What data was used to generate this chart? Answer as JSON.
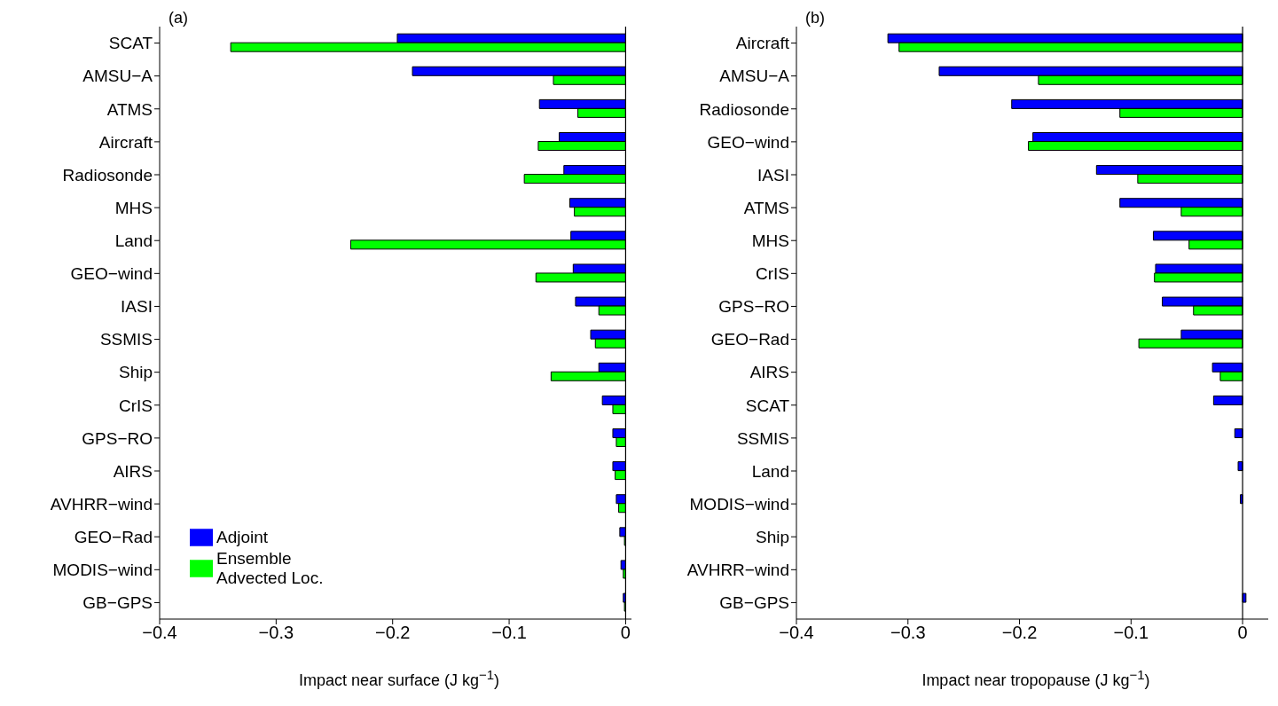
{
  "chart_data": [
    {
      "type": "bar",
      "orientation": "horizontal",
      "title": "(a)",
      "xlabel": "Impact near surface (J kg$^{−1}$)",
      "categories": [
        "SCAT",
        "AMSU−A",
        "ATMS",
        "Aircraft",
        "Radiosonde",
        "MHS",
        "Land",
        "GEO−wind",
        "IASI",
        "SSMIS",
        "Ship",
        "CrIS",
        "GPS−RO",
        "AIRS",
        "AVHRR−wind",
        "GEO−Rad",
        "MODIS−wind",
        "GB−GPS"
      ],
      "series": [
        {
          "name": "Adjoint",
          "color": "#0000ff",
          "values": [
            -0.196,
            -0.183,
            -0.074,
            -0.057,
            -0.053,
            -0.048,
            -0.047,
            -0.045,
            -0.043,
            -0.03,
            -0.023,
            -0.02,
            -0.011,
            -0.011,
            -0.008,
            -0.005,
            -0.004,
            -0.002
          ]
        },
        {
          "name": "Ensemble Advected Loc.",
          "color": "#00ff00",
          "values": [
            -0.339,
            -0.062,
            -0.041,
            -0.075,
            -0.087,
            -0.044,
            -0.236,
            -0.077,
            -0.023,
            -0.026,
            -0.064,
            -0.011,
            -0.008,
            -0.009,
            -0.006,
            -0.001,
            -0.002,
            -0.001
          ]
        }
      ],
      "xlim": [
        -0.4,
        0.005
      ],
      "xticks": [
        -0.4,
        -0.3,
        -0.2,
        -0.1,
        0
      ],
      "ref_lines": [
        {
          "axis": "x",
          "value": 0
        }
      ],
      "legend": "bottom left"
    },
    {
      "type": "bar",
      "orientation": "horizontal",
      "title": "(b)",
      "xlabel": "Impact near tropopause (J kg$^{−1}$)",
      "categories": [
        "Aircraft",
        "AMSU−A",
        "Radiosonde",
        "GEO−wind",
        "IASI",
        "ATMS",
        "MHS",
        "CrIS",
        "GPS−RO",
        "GEO−Rad",
        "AIRS",
        "SCAT",
        "SSMIS",
        "Land",
        "MODIS−wind",
        "Ship",
        "AVHRR−wind",
        "GB−GPS"
      ],
      "series": [
        {
          "color": "#0000ff",
          "values": [
            -0.318,
            -0.272,
            -0.207,
            -0.188,
            -0.131,
            -0.11,
            -0.08,
            -0.078,
            -0.072,
            -0.055,
            -0.027,
            -0.026,
            -0.007,
            -0.004,
            -0.002,
            null,
            null,
            0.003
          ]
        },
        {
          "color": "#00ff00",
          "values": [
            -0.308,
            -0.183,
            -0.11,
            -0.192,
            -0.094,
            -0.055,
            -0.048,
            -0.079,
            -0.044,
            -0.093,
            -0.02,
            null,
            0,
            0,
            0,
            0,
            0,
            0
          ]
        }
      ],
      "xlim": [
        -0.4,
        0.023
      ],
      "xticks": [
        -0.4,
        -0.3,
        -0.2,
        -0.1,
        0
      ],
      "ref_lines": [
        {
          "axis": "x",
          "value": 0
        }
      ]
    }
  ]
}
